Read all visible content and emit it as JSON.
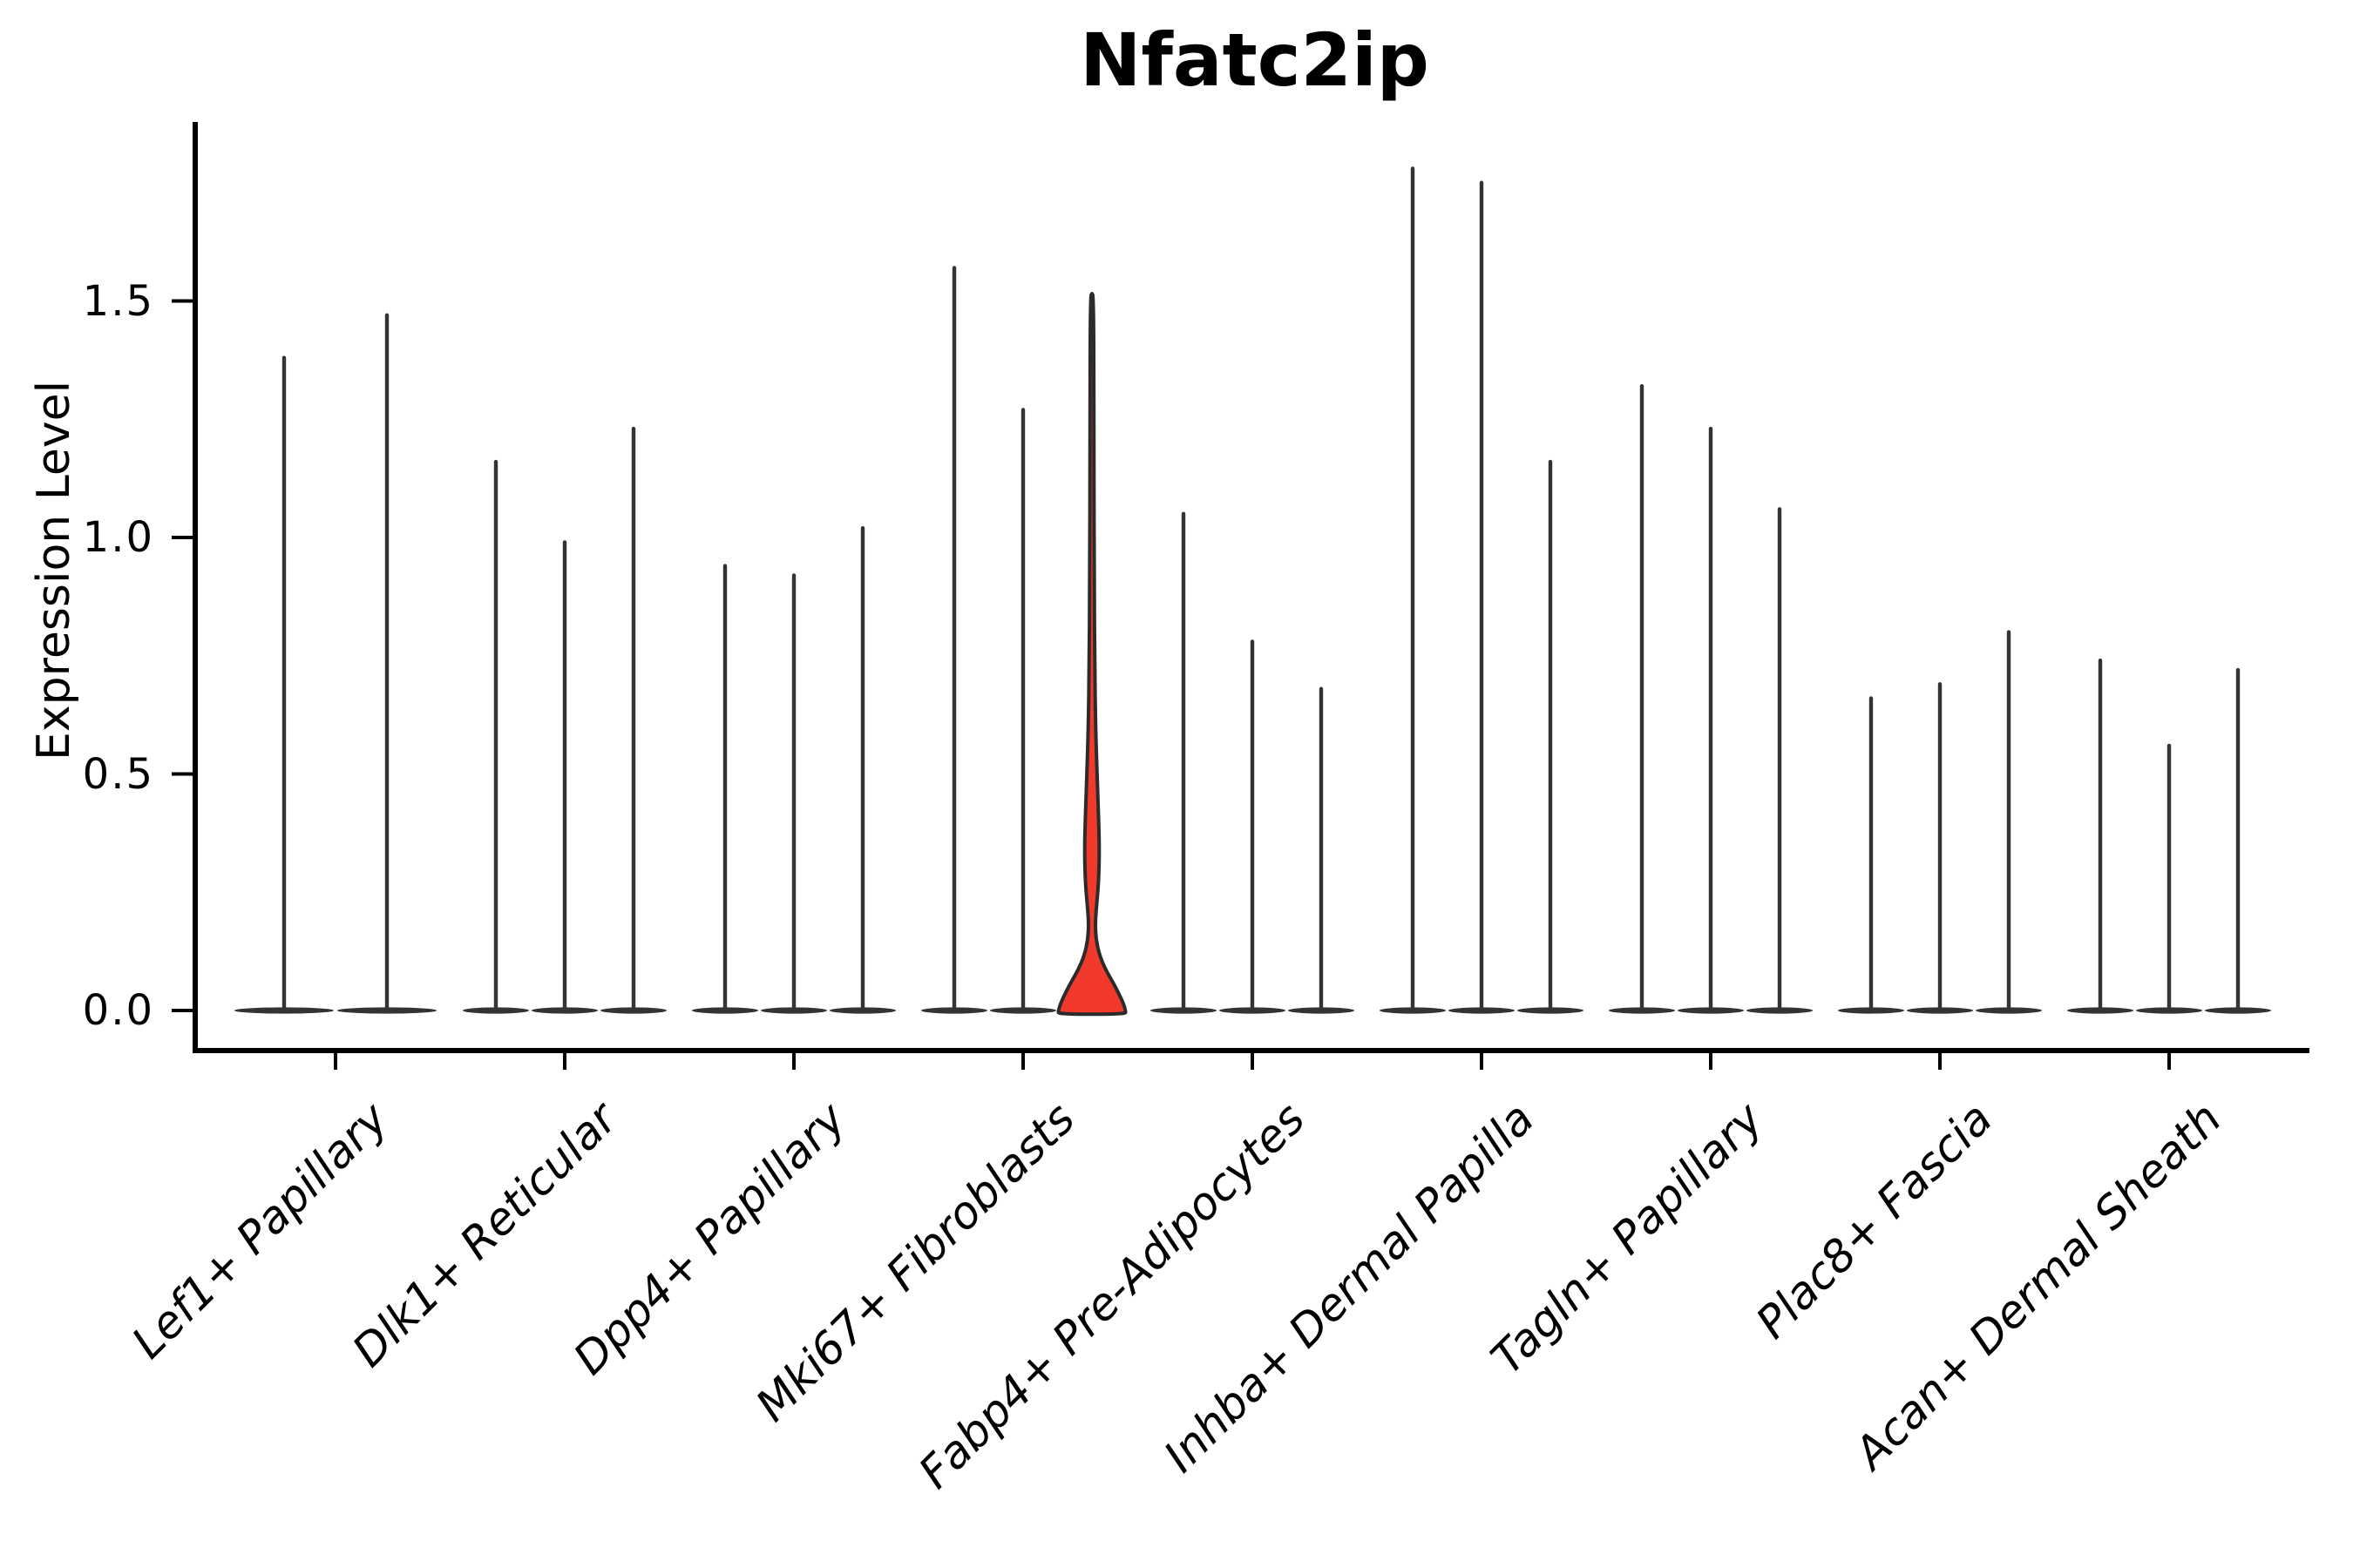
{
  "chart_data": {
    "type": "violin",
    "title": "Nfatc2ip",
    "ylabel": "Expression Level",
    "xlabel": "",
    "ytick_labels": [
      "0.0",
      "0.5",
      "1.0",
      "1.5"
    ],
    "ytick_values": [
      0,
      0.5,
      1.0,
      1.5
    ],
    "ylim": [
      -0.02,
      1.88
    ],
    "grid": false,
    "legend": "none",
    "colors": {
      "violin_outline": "#333333",
      "highlight_fill": "#f23a2c",
      "highlight_stroke": "#2b2b2b",
      "axis_color": "#000000",
      "text_color": "#000000"
    },
    "categories": [
      "Lef1+ Papillary",
      "Dlk1+ Reticular",
      "Dpp4+ Papillary",
      "Mki67+ Fibroblasts",
      "Fabp4+ Pre-Adipocytes",
      "Inhba+ Dermal Papilla",
      "Tagln+ Papillary",
      "Plac8+ Fascia",
      "Acan+ Dermal Sheath"
    ],
    "groups": [
      {
        "category": "Lef1+ Papillary",
        "violins": [
          {
            "max": 1.38
          },
          {
            "max": 1.47
          }
        ]
      },
      {
        "category": "Dlk1+ Reticular",
        "violins": [
          {
            "max": 1.16
          },
          {
            "max": 0.99
          },
          {
            "max": 1.23
          }
        ]
      },
      {
        "category": "Dpp4+ Papillary",
        "violins": [
          {
            "max": 0.94
          },
          {
            "max": 0.92
          },
          {
            "max": 1.02
          }
        ]
      },
      {
        "category": "Mki67+ Fibroblasts",
        "violins": [
          {
            "max": 1.57
          },
          {
            "max": 1.27
          },
          {
            "max": 1.51,
            "highlighted": true
          }
        ]
      },
      {
        "category": "Fabp4+ Pre-Adipocytes",
        "violins": [
          {
            "max": 1.05
          },
          {
            "max": 0.78
          },
          {
            "max": 0.68
          }
        ]
      },
      {
        "category": "Inhba+ Dermal Papilla",
        "violins": [
          {
            "max": 1.78
          },
          {
            "max": 1.75
          },
          {
            "max": 1.16
          }
        ]
      },
      {
        "category": "Tagln+ Papillary",
        "violins": [
          {
            "max": 1.32
          },
          {
            "max": 1.23
          },
          {
            "max": 1.06
          }
        ]
      },
      {
        "category": "Plac8+ Fascia",
        "violins": [
          {
            "max": 0.66
          },
          {
            "max": 0.69
          },
          {
            "max": 0.8
          }
        ]
      },
      {
        "category": "Acan+ Dermal Sheath",
        "violins": [
          {
            "max": 0.74
          },
          {
            "max": 0.56
          },
          {
            "max": 0.72
          }
        ]
      }
    ],
    "highlight_profile_value_halfwidth": [
      [
        1.51,
        0.05
      ],
      [
        1.2,
        0.055
      ],
      [
        0.9,
        0.065
      ],
      [
        0.72,
        0.08
      ],
      [
        0.6,
        0.105
      ],
      [
        0.5,
        0.145
      ],
      [
        0.42,
        0.185
      ],
      [
        0.34,
        0.215
      ],
      [
        0.27,
        0.19
      ],
      [
        0.22,
        0.13
      ],
      [
        0.185,
        0.095
      ],
      [
        0.15,
        0.115
      ],
      [
        0.115,
        0.225
      ],
      [
        0.085,
        0.4
      ],
      [
        0.06,
        0.6
      ],
      [
        0.035,
        0.775
      ],
      [
        0.015,
        0.9
      ],
      [
        0.0,
        0.9625
      ],
      [
        -0.008,
        0.9625
      ]
    ]
  }
}
